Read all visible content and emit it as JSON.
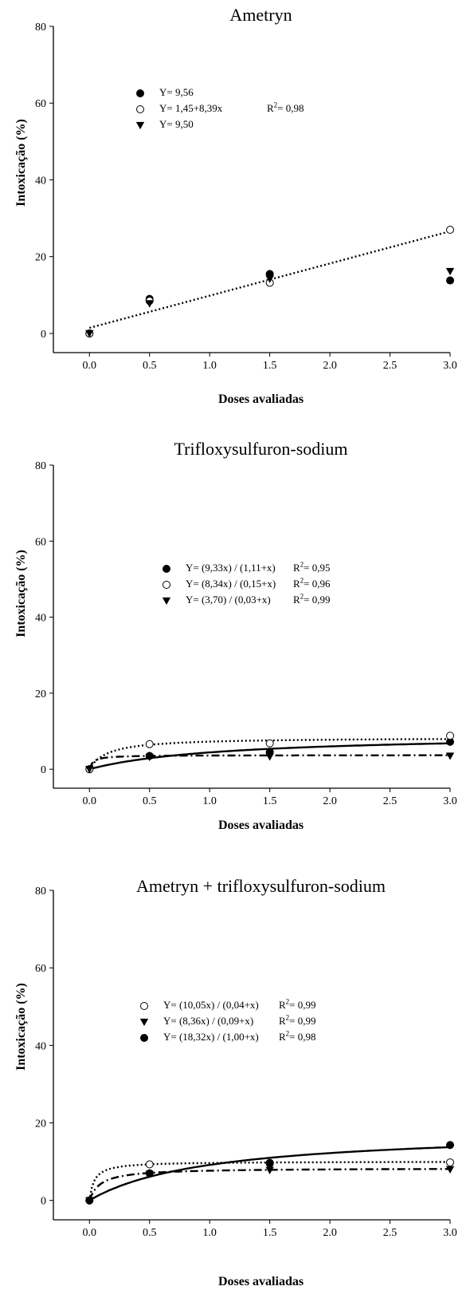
{
  "chart_data": [
    {
      "type": "scatter",
      "title": "Ametryn",
      "xlabel": "Doses avaliadas",
      "ylabel": "Intoxicação (%)",
      "xlim": [
        -0.3,
        3.0
      ],
      "ylim": [
        -5,
        80
      ],
      "xticks": [
        "0.0",
        "0.5",
        "1.0",
        "1.5",
        "2.0",
        "2.5",
        "3.0"
      ],
      "yticks": [
        "0",
        "20",
        "40",
        "60",
        "80"
      ],
      "x": [
        0,
        0.5,
        1.5,
        3.0
      ],
      "series": [
        {
          "marker": "filled-circle",
          "values": [
            0,
            9.0,
            15.5,
            13.8
          ],
          "fit": {
            "kind": "constant",
            "a": 9.56,
            "style": "none"
          }
        },
        {
          "marker": "open-circle",
          "values": [
            0,
            8.5,
            13.2,
            27.0
          ],
          "fit": {
            "kind": "linear",
            "a": 1.45,
            "b": 8.39,
            "style": "dotted"
          }
        },
        {
          "marker": "filled-triangle",
          "values": [
            0,
            7.8,
            14.2,
            16.2
          ],
          "fit": {
            "kind": "constant",
            "a": 9.5,
            "style": "none"
          }
        }
      ],
      "legend": [
        {
          "marker": "filled-circle",
          "equation": "Y= 9,56",
          "r2": ""
        },
        {
          "marker": "open-circle",
          "equation": "Y= 1,45+8,39x",
          "r2": "0,98"
        },
        {
          "marker": "filled-triangle",
          "equation": "Y= 9,50",
          "r2": ""
        }
      ]
    },
    {
      "type": "scatter",
      "title": "Trifloxysulfuron-sodium",
      "xlabel": "Doses avaliadas",
      "ylabel": "Intoxicação (%)",
      "xlim": [
        -0.3,
        3.0
      ],
      "ylim": [
        -5,
        80
      ],
      "xticks": [
        "0.0",
        "0.5",
        "1.0",
        "1.5",
        "2.0",
        "2.5",
        "3.0"
      ],
      "yticks": [
        "0",
        "20",
        "40",
        "60",
        "80"
      ],
      "x": [
        0,
        0.5,
        1.5,
        3.0
      ],
      "series": [
        {
          "marker": "filled-circle",
          "values": [
            0,
            3.5,
            4.5,
            7.2
          ],
          "fit": {
            "kind": "hyperbolic",
            "a": 9.33,
            "b": 1.11,
            "style": "solid"
          }
        },
        {
          "marker": "open-circle",
          "values": [
            0,
            6.6,
            6.8,
            8.8
          ],
          "fit": {
            "kind": "hyperbolic",
            "a": 8.34,
            "b": 0.15,
            "style": "dotted"
          }
        },
        {
          "marker": "filled-triangle",
          "values": [
            0,
            3.2,
            3.3,
            3.5
          ],
          "fit": {
            "kind": "hyperbolic",
            "a": 3.7,
            "b": 0.03,
            "style": "dashdot"
          }
        }
      ],
      "legend": [
        {
          "marker": "filled-circle",
          "equation": "Y= (9,33x) / (1,11+x)",
          "r2": "0,95"
        },
        {
          "marker": "open-circle",
          "equation": "Y= (8,34x) / (0,15+x)",
          "r2": "0,96"
        },
        {
          "marker": "filled-triangle",
          "equation": "Y= (3,70) / (0,03+x)",
          "r2": "0,99"
        }
      ]
    },
    {
      "type": "scatter",
      "title": "Ametryn + trifloxysulfuron-sodium",
      "xlabel": "Doses avaliadas",
      "ylabel": "Intoxicação (%)",
      "xlim": [
        -0.3,
        3.0
      ],
      "ylim": [
        -5,
        80
      ],
      "xticks": [
        "0.0",
        "0.5",
        "1.0",
        "1.5",
        "2.0",
        "2.5",
        "3.0"
      ],
      "yticks": [
        "0",
        "20",
        "40",
        "60",
        "80"
      ],
      "x": [
        0,
        0.5,
        1.5,
        3.0
      ],
      "series": [
        {
          "marker": "open-circle",
          "values": [
            0,
            9.3,
            9.7,
            9.8
          ],
          "fit": {
            "kind": "hyperbolic",
            "a": 10.05,
            "b": 0.04,
            "style": "dotted"
          }
        },
        {
          "marker": "filled-triangle",
          "values": [
            0,
            6.8,
            7.8,
            8.0
          ],
          "fit": {
            "kind": "hyperbolic",
            "a": 8.36,
            "b": 0.09,
            "style": "dashdot"
          }
        },
        {
          "marker": "filled-circle",
          "values": [
            0,
            7.0,
            9.5,
            14.3
          ],
          "fit": {
            "kind": "hyperbolic",
            "a": 18.32,
            "b": 1.0,
            "style": "solid"
          }
        }
      ],
      "legend": [
        {
          "marker": "open-circle",
          "equation": "Y= (10,05x) / (0,04+x)",
          "r2": "0,99"
        },
        {
          "marker": "filled-triangle",
          "equation": "Y= (8,36x) / (0,09+x)",
          "r2": "0,99"
        },
        {
          "marker": "filled-circle",
          "equation": "Y= (18,32x) / (1,00+x)",
          "r2": "0,98"
        }
      ]
    }
  ]
}
